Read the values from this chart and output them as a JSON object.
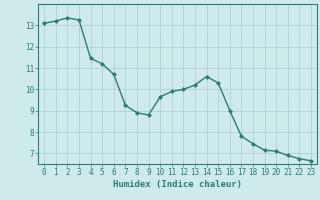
{
  "x": [
    0,
    1,
    2,
    3,
    4,
    5,
    6,
    7,
    8,
    9,
    10,
    11,
    12,
    13,
    14,
    15,
    16,
    17,
    18,
    19,
    20,
    21,
    22,
    23
  ],
  "y": [
    13.1,
    13.2,
    13.35,
    13.25,
    11.45,
    11.2,
    10.7,
    9.25,
    8.9,
    8.8,
    9.65,
    9.9,
    10.0,
    10.2,
    10.6,
    10.3,
    9.0,
    7.8,
    7.45,
    7.15,
    7.1,
    6.9,
    6.75,
    6.65
  ],
  "line_color": "#2e7d6e",
  "marker": "D",
  "marker_size": 2.0,
  "linewidth": 1.0,
  "xlabel": "Humidex (Indice chaleur)",
  "xlabel_fontsize": 6.5,
  "ylim": [
    6.5,
    14.0
  ],
  "xlim": [
    -0.5,
    23.5
  ],
  "yticks": [
    7,
    8,
    9,
    10,
    11,
    12,
    13
  ],
  "xticks": [
    0,
    1,
    2,
    3,
    4,
    5,
    6,
    7,
    8,
    9,
    10,
    11,
    12,
    13,
    14,
    15,
    16,
    17,
    18,
    19,
    20,
    21,
    22,
    23
  ],
  "background_color": "#ceeaea",
  "grid_color": "#aacccc",
  "tick_fontsize": 5.5,
  "spine_color": "#2e7d6e"
}
